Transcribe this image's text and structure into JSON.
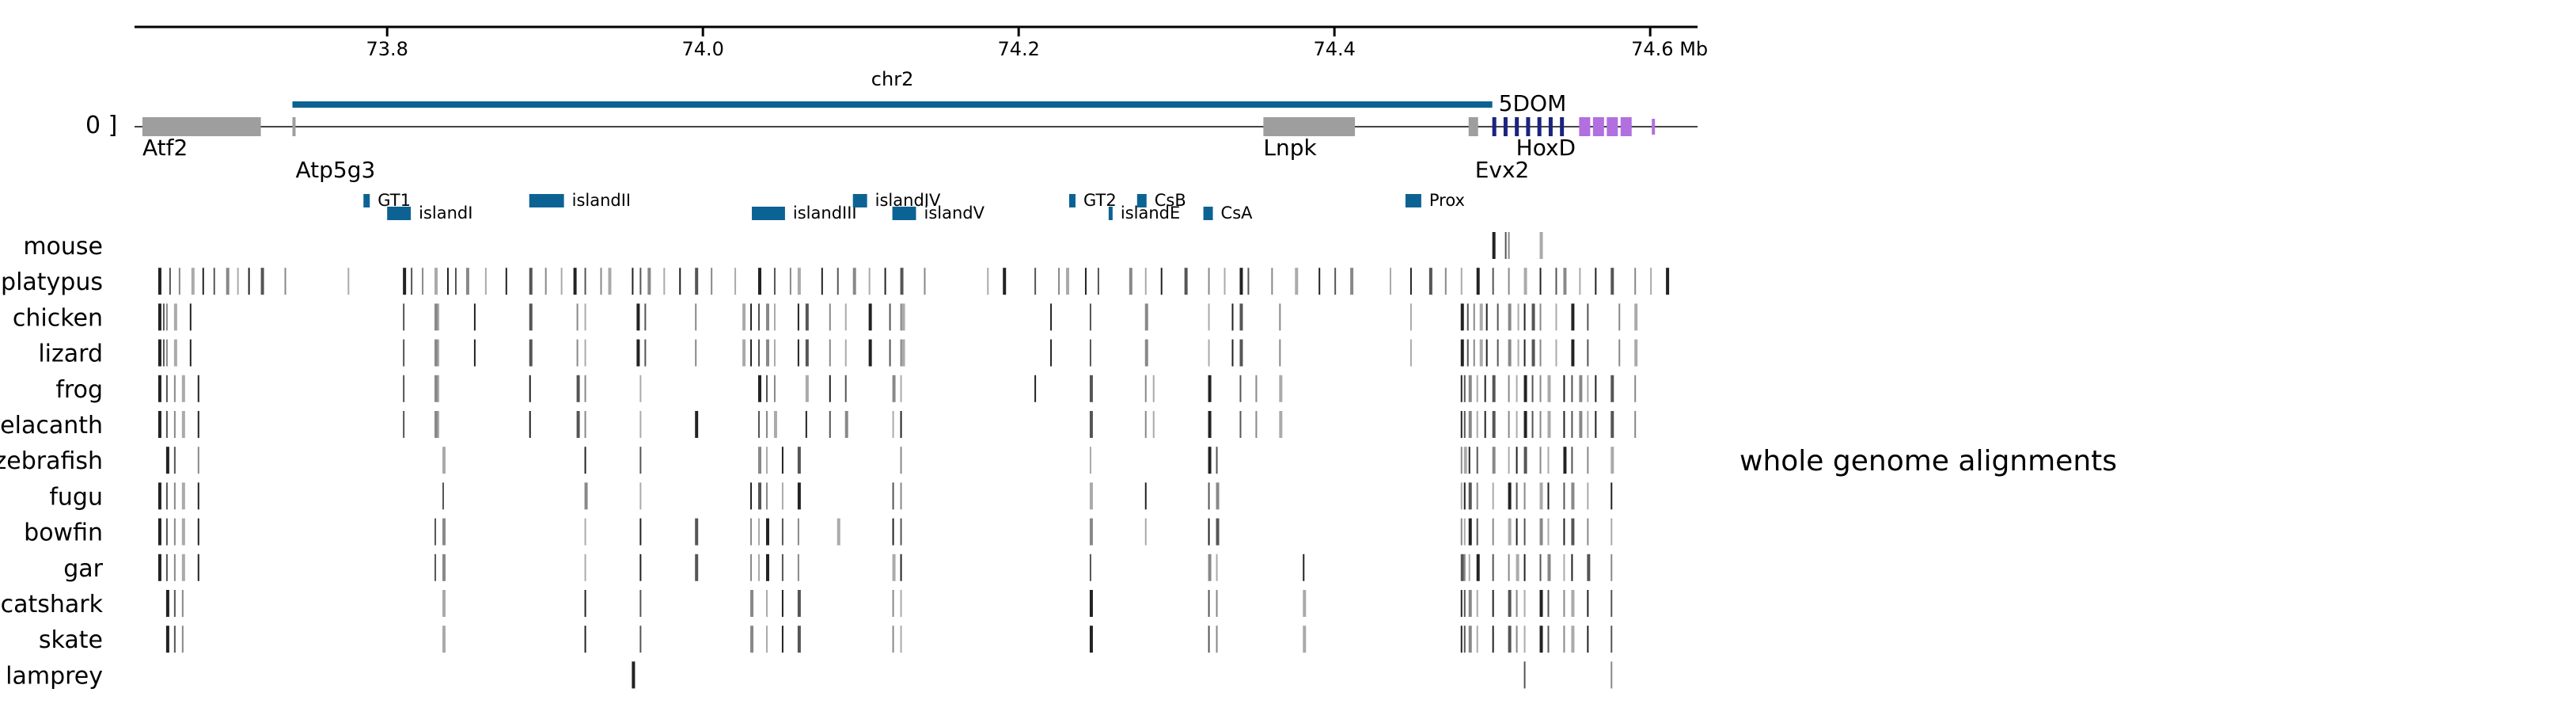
{
  "chart_data": {
    "type": "genome-browser",
    "axis": {
      "ticks": [
        73.8,
        74.0,
        74.2,
        74.4,
        74.6
      ],
      "tick_labels": [
        "73.8",
        "74.0",
        "74.2",
        "74.4",
        "74.6 Mb"
      ],
      "range": [
        73.64,
        74.63
      ]
    },
    "chromosome": {
      "label": "chr2",
      "start": 73.74,
      "end": 74.5
    },
    "strand_marks": "0 ]",
    "regulatory_domain": {
      "label": "5DOM"
    },
    "genes": [
      {
        "label": "Atf2",
        "start": 73.645,
        "end": 73.72,
        "color": "#9e9e9e"
      },
      {
        "label": "Atp5g3",
        "start": 73.74,
        "end": 73.742,
        "color": "#9e9e9e"
      },
      {
        "label": "Lnpk",
        "start": 74.355,
        "end": 74.413,
        "color": "#9e9e9e"
      },
      {
        "label": "Evx2",
        "start": 74.485,
        "end": 74.491,
        "color": "#9e9e9e"
      },
      {
        "label": "HoxD",
        "start": 74.5,
        "end": 74.55,
        "color": "#1a237e"
      },
      {
        "label": "",
        "start": 74.555,
        "end": 74.59,
        "color": "#b26fe0"
      }
    ],
    "elements": [
      {
        "label": "GT1",
        "start": 73.785,
        "end": 73.789,
        "row": 0
      },
      {
        "label": "islandI",
        "start": 73.8,
        "end": 73.815,
        "row": 1
      },
      {
        "label": "islandII",
        "start": 73.89,
        "end": 73.912,
        "row": 0
      },
      {
        "label": "islandIII",
        "start": 74.031,
        "end": 74.052,
        "row": 1
      },
      {
        "label": "islandIV",
        "start": 74.095,
        "end": 74.104,
        "row": 0
      },
      {
        "label": "islandV",
        "start": 74.12,
        "end": 74.135,
        "row": 1
      },
      {
        "label": "GT2",
        "start": 74.232,
        "end": 74.236,
        "row": 0
      },
      {
        "label": "islandE",
        "start": 74.257,
        "end": 74.259,
        "row": 1
      },
      {
        "label": "CsB",
        "start": 74.275,
        "end": 74.281,
        "row": 0
      },
      {
        "label": "CsA",
        "start": 74.317,
        "end": 74.323,
        "row": 1
      },
      {
        "label": "Prox",
        "start": 74.445,
        "end": 74.455,
        "row": 0
      }
    ],
    "element_color": "#0c6393",
    "species": [
      "mouse",
      "platypus",
      "chicken",
      "lizard",
      "frog",
      "coelacanth",
      "zebrafish",
      "fugu",
      "bowfin",
      "gar",
      "catshark",
      "skate",
      "lamprey"
    ],
    "conserved_blocks": [
      [
        74.5,
        74.508,
        74.51,
        74.53
      ],
      [
        73.655,
        73.662,
        73.668,
        73.676,
        73.683,
        73.69,
        73.698,
        73.705,
        73.712,
        73.72,
        73.735,
        73.775,
        73.81,
        73.815,
        73.822,
        73.83,
        73.838,
        73.843,
        73.85,
        73.862,
        73.875,
        73.89,
        73.9,
        73.91,
        73.918,
        73.925,
        73.935,
        73.94,
        73.955,
        73.96,
        73.965,
        73.975,
        73.985,
        73.995,
        74.005,
        74.02,
        74.035,
        74.045,
        74.055,
        74.06,
        74.075,
        74.085,
        74.095,
        74.105,
        74.115,
        74.125,
        74.14,
        74.18,
        74.19,
        74.21,
        74.225,
        74.23,
        74.242,
        74.25,
        74.27,
        74.28,
        74.29,
        74.305,
        74.32,
        74.33,
        74.34,
        74.345,
        74.36,
        74.375,
        74.39,
        74.4,
        74.41,
        74.435,
        74.448,
        74.46,
        74.47,
        74.48,
        74.49,
        74.5,
        74.51,
        74.52,
        74.53,
        74.54,
        74.545,
        74.555,
        74.565,
        74.575,
        74.59,
        74.6,
        74.61
      ],
      [
        73.655,
        73.658,
        73.66,
        73.665,
        73.675,
        73.81,
        73.83,
        73.832,
        73.855,
        73.89,
        73.92,
        73.925,
        73.958,
        73.963,
        73.995,
        74.025,
        74.03,
        74.035,
        74.04,
        74.045,
        74.06,
        74.065,
        74.08,
        74.09,
        74.105,
        74.118,
        74.125,
        74.126,
        74.22,
        74.245,
        74.28,
        74.32,
        74.335,
        74.34,
        74.365,
        74.448,
        74.48,
        74.484,
        74.488,
        74.492,
        74.496,
        74.503,
        74.51,
        74.516,
        74.52,
        74.525,
        74.53,
        74.54,
        74.55,
        74.56,
        74.58,
        74.59
      ],
      [
        73.655,
        73.658,
        73.66,
        73.665,
        73.675,
        73.81,
        73.83,
        73.832,
        73.855,
        73.89,
        73.92,
        73.925,
        73.958,
        73.963,
        73.995,
        74.025,
        74.03,
        74.035,
        74.04,
        74.045,
        74.06,
        74.065,
        74.08,
        74.09,
        74.105,
        74.118,
        74.125,
        74.126,
        74.22,
        74.245,
        74.28,
        74.32,
        74.335,
        74.34,
        74.365,
        74.448,
        74.48,
        74.484,
        74.488,
        74.492,
        74.496,
        74.503,
        74.51,
        74.516,
        74.52,
        74.525,
        74.53,
        74.54,
        74.55,
        74.56,
        74.58,
        74.59
      ],
      [
        73.655,
        73.66,
        73.665,
        73.67,
        73.68,
        73.81,
        73.83,
        73.832,
        73.89,
        73.92,
        73.925,
        73.96,
        74.035,
        74.04,
        74.045,
        74.065,
        74.08,
        74.09,
        74.12,
        74.125,
        74.21,
        74.245,
        74.28,
        74.285,
        74.32,
        74.34,
        74.35,
        74.365,
        74.48,
        74.482,
        74.485,
        74.49,
        74.495,
        74.5,
        74.51,
        74.515,
        74.52,
        74.525,
        74.53,
        74.535,
        74.545,
        74.55,
        74.555,
        74.56,
        74.565,
        74.575,
        74.59
      ],
      [
        73.655,
        73.66,
        73.665,
        73.67,
        73.68,
        73.81,
        73.83,
        73.832,
        73.89,
        73.92,
        73.925,
        73.96,
        73.995,
        74.035,
        74.04,
        74.045,
        74.065,
        74.08,
        74.09,
        74.12,
        74.125,
        74.245,
        74.28,
        74.285,
        74.32,
        74.34,
        74.35,
        74.365,
        74.48,
        74.482,
        74.485,
        74.49,
        74.495,
        74.5,
        74.51,
        74.515,
        74.52,
        74.525,
        74.53,
        74.535,
        74.545,
        74.55,
        74.555,
        74.56,
        74.565,
        74.575,
        74.59
      ],
      [
        73.66,
        73.665,
        73.68,
        73.835,
        73.925,
        73.96,
        74.035,
        74.04,
        74.05,
        74.06,
        74.125,
        74.245,
        74.32,
        74.325,
        74.48,
        74.482,
        74.485,
        74.49,
        74.5,
        74.51,
        74.515,
        74.52,
        74.53,
        74.535,
        74.545,
        74.55,
        74.56,
        74.575
      ],
      [
        73.655,
        73.66,
        73.665,
        73.67,
        73.68,
        73.835,
        73.925,
        73.96,
        74.03,
        74.035,
        74.04,
        74.05,
        74.06,
        74.12,
        74.125,
        74.245,
        74.28,
        74.32,
        74.325,
        74.48,
        74.482,
        74.485,
        74.49,
        74.5,
        74.51,
        74.515,
        74.52,
        74.53,
        74.535,
        74.545,
        74.55,
        74.56,
        74.575
      ],
      [
        73.655,
        73.66,
        73.665,
        73.67,
        73.68,
        73.83,
        73.835,
        73.925,
        73.96,
        73.995,
        74.03,
        74.035,
        74.04,
        74.05,
        74.06,
        74.085,
        74.12,
        74.125,
        74.245,
        74.28,
        74.32,
        74.325,
        74.48,
        74.482,
        74.485,
        74.49,
        74.5,
        74.51,
        74.515,
        74.52,
        74.53,
        74.535,
        74.545,
        74.55,
        74.56,
        74.575
      ],
      [
        73.655,
        73.66,
        73.665,
        73.67,
        73.68,
        73.83,
        73.835,
        73.925,
        73.96,
        73.995,
        74.03,
        74.035,
        74.04,
        74.05,
        74.06,
        74.12,
        74.125,
        74.245,
        74.32,
        74.325,
        74.38,
        74.48,
        74.482,
        74.485,
        74.49,
        74.5,
        74.51,
        74.515,
        74.52,
        74.53,
        74.535,
        74.545,
        74.55,
        74.56,
        74.575
      ],
      [
        73.66,
        73.665,
        73.67,
        73.835,
        73.925,
        73.96,
        74.03,
        74.04,
        74.05,
        74.06,
        74.12,
        74.125,
        74.245,
        74.32,
        74.325,
        74.38,
        74.48,
        74.482,
        74.485,
        74.49,
        74.5,
        74.51,
        74.515,
        74.52,
        74.53,
        74.535,
        74.545,
        74.55,
        74.56,
        74.575
      ],
      [
        73.66,
        73.665,
        73.67,
        73.835,
        73.925,
        73.96,
        74.03,
        74.04,
        74.05,
        74.06,
        74.12,
        74.125,
        74.245,
        74.32,
        74.325,
        74.38,
        74.48,
        74.482,
        74.485,
        74.49,
        74.5,
        74.51,
        74.515,
        74.52,
        74.53,
        74.535,
        74.545,
        74.55,
        74.56,
        74.575
      ],
      [
        73.955,
        74.52,
        74.575
      ]
    ],
    "alignment_track_label": "whole genome alignments"
  }
}
